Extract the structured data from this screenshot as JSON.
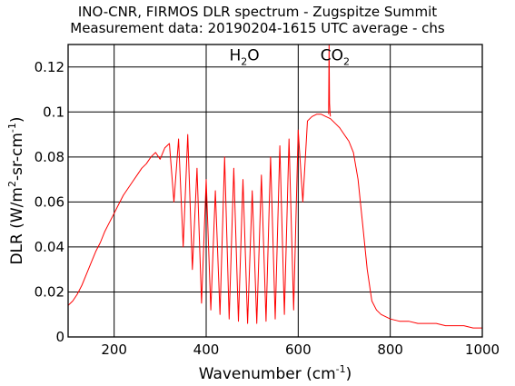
{
  "chart_data": {
    "type": "line",
    "title": "INO-CNR, FIRMOS DLR spectrum - Zugspitze Summit",
    "subtitle": "Measurement data: 20190204-1615 UTC average - chs",
    "xlabel_base": "Wavenumber (cm",
    "xlabel_sup": "-1",
    "xlabel_end": ")",
    "ylabel_1": "DLR (W/m",
    "ylabel_sup_1": "2",
    "ylabel_2": "-sr-cm",
    "ylabel_sup_2": "-1",
    "ylabel_3": ")",
    "xlim": [
      100,
      1000
    ],
    "ylim": [
      0,
      0.13
    ],
    "xticks": [
      200,
      400,
      600,
      800,
      1000
    ],
    "xtick_labels": [
      "200",
      "400",
      "600",
      "800",
      "1000"
    ],
    "yticks": [
      0,
      0.02,
      0.04,
      0.06,
      0.08,
      0.1,
      0.12
    ],
    "ytick_labels": [
      "0",
      "0.02",
      "0.04",
      "0.06",
      "0.08",
      "0.1",
      "0.12"
    ],
    "grid": true,
    "annotations": [
      {
        "text": "H",
        "sub": "2",
        "tail": "O",
        "x": 483,
        "y": 0.123
      },
      {
        "text": "CO",
        "sub": "2",
        "tail": "",
        "x": 680,
        "y": 0.123
      }
    ],
    "series": [
      {
        "color": "#ff0000",
        "x": [
          100,
          110,
          120,
          130,
          140,
          150,
          160,
          170,
          180,
          190,
          200,
          210,
          220,
          230,
          240,
          250,
          260,
          270,
          280,
          290,
          300,
          310,
          320,
          330,
          340,
          350,
          360,
          370,
          380,
          390,
          400,
          410,
          420,
          430,
          440,
          450,
          460,
          470,
          480,
          490,
          500,
          510,
          520,
          530,
          540,
          550,
          560,
          570,
          580,
          590,
          600,
          610,
          620,
          630,
          640,
          650,
          660,
          670,
          680,
          690,
          700,
          710,
          720,
          730,
          740,
          750,
          760,
          770,
          780,
          790,
          800,
          820,
          840,
          860,
          880,
          900,
          920,
          940,
          960,
          980,
          1000
        ],
        "y": [
          0.014,
          0.016,
          0.019,
          0.023,
          0.028,
          0.033,
          0.038,
          0.042,
          0.047,
          0.051,
          0.055,
          0.059,
          0.063,
          0.066,
          0.069,
          0.072,
          0.075,
          0.077,
          0.08,
          0.082,
          0.079,
          0.084,
          0.086,
          0.06,
          0.088,
          0.04,
          0.09,
          0.03,
          0.075,
          0.015,
          0.07,
          0.012,
          0.065,
          0.01,
          0.08,
          0.008,
          0.075,
          0.007,
          0.07,
          0.006,
          0.065,
          0.006,
          0.072,
          0.007,
          0.08,
          0.008,
          0.085,
          0.01,
          0.088,
          0.012,
          0.092,
          0.06,
          0.096,
          0.098,
          0.099,
          0.099,
          0.098,
          0.097,
          0.095,
          0.093,
          0.09,
          0.087,
          0.082,
          0.07,
          0.05,
          0.03,
          0.016,
          0.012,
          0.01,
          0.009,
          0.008,
          0.007,
          0.007,
          0.006,
          0.006,
          0.006,
          0.005,
          0.005,
          0.005,
          0.004,
          0.004
        ]
      },
      {
        "color": "#ff0000",
        "x": [
          666,
          667,
          668,
          669,
          670
        ],
        "y": [
          0.099,
          0.13,
          0.104,
          0.1,
          0.098
        ]
      }
    ]
  }
}
